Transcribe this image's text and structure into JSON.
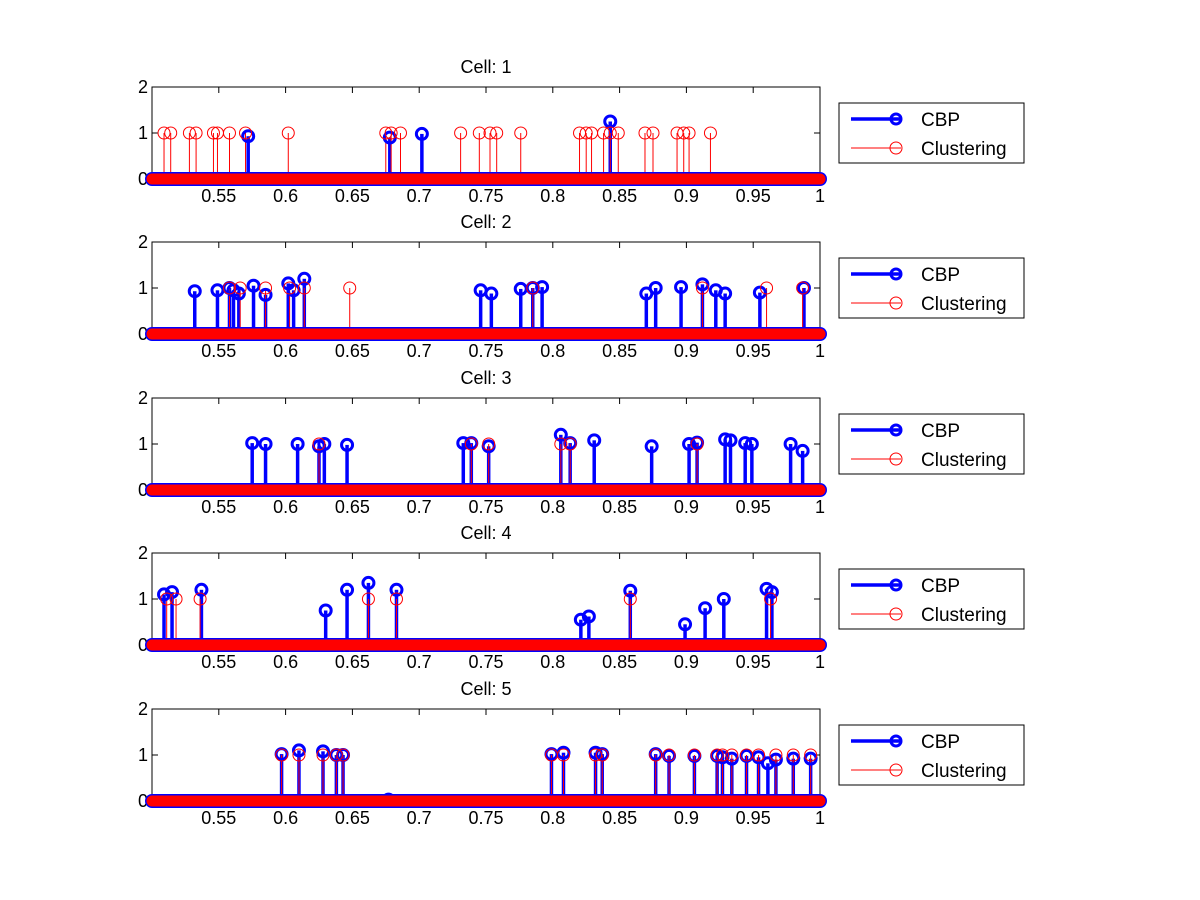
{
  "colors": {
    "cbp": "#0000ff",
    "clustering": "#ff0000",
    "axes": "#000000",
    "background": "#ffffff"
  },
  "chart_data": [
    {
      "type": "stem",
      "title": "Cell: 1",
      "xlim": [
        0.5,
        1.0
      ],
      "ylim": [
        0,
        2
      ],
      "xticks": [
        0.55,
        0.6,
        0.65,
        0.7,
        0.75,
        0.8,
        0.85,
        0.9,
        0.95,
        1
      ],
      "xtick_labels": [
        "0.55",
        "0.6",
        "0.65",
        "0.7",
        "0.75",
        "0.8",
        "0.85",
        "0.9",
        "0.95",
        "1"
      ],
      "yticks": [
        0,
        1,
        2
      ],
      "ytick_labels": [
        "0",
        "1",
        "2"
      ],
      "legend": {
        "position": "outside-right",
        "entries": [
          "CBP",
          "Clustering"
        ]
      },
      "series": [
        {
          "name": "CBP",
          "color": "#0000ff",
          "x": [
            0.572,
            0.678,
            0.702,
            0.843
          ],
          "y": [
            0.93,
            0.9,
            0.98,
            1.25
          ]
        },
        {
          "name": "Clustering",
          "color": "#ff0000",
          "x": [
            0.509,
            0.514,
            0.528,
            0.533,
            0.546,
            0.549,
            0.558,
            0.57,
            0.602,
            0.675,
            0.679,
            0.686,
            0.731,
            0.745,
            0.753,
            0.758,
            0.776,
            0.82,
            0.825,
            0.829,
            0.838,
            0.843,
            0.849,
            0.869,
            0.875,
            0.893,
            0.898,
            0.902,
            0.918
          ],
          "y": [
            1,
            1,
            1,
            1,
            1,
            1,
            1,
            1,
            1,
            1,
            1,
            1,
            1,
            1,
            1,
            1,
            1,
            1,
            1,
            1,
            1,
            1,
            1,
            1,
            1,
            1,
            1,
            1,
            1
          ]
        }
      ]
    },
    {
      "type": "stem",
      "title": "Cell: 2",
      "xlim": [
        0.5,
        1.0
      ],
      "ylim": [
        0,
        2
      ],
      "xticks": [
        0.55,
        0.6,
        0.65,
        0.7,
        0.75,
        0.8,
        0.85,
        0.9,
        0.95,
        1
      ],
      "xtick_labels": [
        "0.55",
        "0.6",
        "0.65",
        "0.7",
        "0.75",
        "0.8",
        "0.85",
        "0.9",
        "0.95",
        "1"
      ],
      "yticks": [
        0,
        1,
        2
      ],
      "ytick_labels": [
        "0",
        "1",
        "2"
      ],
      "legend": {
        "position": "outside-right",
        "entries": [
          "CBP",
          "Clustering"
        ]
      },
      "series": [
        {
          "name": "CBP",
          "color": "#0000ff",
          "x": [
            0.532,
            0.549,
            0.558,
            0.561,
            0.565,
            0.576,
            0.585,
            0.602,
            0.606,
            0.614,
            0.746,
            0.754,
            0.776,
            0.785,
            0.792,
            0.87,
            0.877,
            0.896,
            0.912,
            0.922,
            0.929,
            0.955,
            0.988
          ],
          "y": [
            0.93,
            0.95,
            1.0,
            0.95,
            0.88,
            1.05,
            0.85,
            1.1,
            0.95,
            1.2,
            0.95,
            0.88,
            0.98,
            1.0,
            1.02,
            0.88,
            1.0,
            1.02,
            1.08,
            0.95,
            0.88,
            0.9,
            1.0
          ]
        },
        {
          "name": "Clustering",
          "color": "#ff0000",
          "x": [
            0.558,
            0.566,
            0.585,
            0.603,
            0.614,
            0.648,
            0.785,
            0.912,
            0.96,
            0.987
          ],
          "y": [
            1,
            1,
            1,
            1,
            1,
            1,
            1,
            1,
            1,
            1
          ]
        }
      ]
    },
    {
      "type": "stem",
      "title": "Cell: 3",
      "xlim": [
        0.5,
        1.0
      ],
      "ylim": [
        0,
        2
      ],
      "xticks": [
        0.55,
        0.6,
        0.65,
        0.7,
        0.75,
        0.8,
        0.85,
        0.9,
        0.95,
        1
      ],
      "xtick_labels": [
        "0.55",
        "0.6",
        "0.65",
        "0.7",
        "0.75",
        "0.8",
        "0.85",
        "0.9",
        "0.95",
        "1"
      ],
      "yticks": [
        0,
        1,
        2
      ],
      "ytick_labels": [
        "0",
        "1",
        "2"
      ],
      "legend": {
        "position": "outside-right",
        "entries": [
          "CBP",
          "Clustering"
        ]
      },
      "series": [
        {
          "name": "CBP",
          "color": "#0000ff",
          "x": [
            0.575,
            0.585,
            0.609,
            0.625,
            0.629,
            0.646,
            0.733,
            0.739,
            0.752,
            0.806,
            0.813,
            0.831,
            0.874,
            0.902,
            0.908,
            0.929,
            0.933,
            0.944,
            0.949,
            0.978,
            0.987
          ],
          "y": [
            1.02,
            1.0,
            1.0,
            0.95,
            1.0,
            0.98,
            1.02,
            1.02,
            0.95,
            1.2,
            1.02,
            1.08,
            0.95,
            1.0,
            1.03,
            1.1,
            1.08,
            1.02,
            1.0,
            1.0,
            0.85
          ]
        },
        {
          "name": "Clustering",
          "color": "#ff0000",
          "x": [
            0.625,
            0.739,
            0.752,
            0.806,
            0.813,
            0.908
          ],
          "y": [
            1,
            1,
            1,
            1,
            1,
            1
          ]
        }
      ]
    },
    {
      "type": "stem",
      "title": "Cell: 4",
      "xlim": [
        0.5,
        1.0
      ],
      "ylim": [
        0,
        2
      ],
      "xticks": [
        0.55,
        0.6,
        0.65,
        0.7,
        0.75,
        0.8,
        0.85,
        0.9,
        0.95,
        1
      ],
      "xtick_labels": [
        "0.55",
        "0.6",
        "0.65",
        "0.7",
        "0.75",
        "0.8",
        "0.85",
        "0.9",
        "0.95",
        "1"
      ],
      "yticks": [
        0,
        1,
        2
      ],
      "ytick_labels": [
        "0",
        "1",
        "2"
      ],
      "legend": {
        "position": "outside-right",
        "entries": [
          "CBP",
          "Clustering"
        ]
      },
      "series": [
        {
          "name": "CBP",
          "color": "#0000ff",
          "x": [
            0.509,
            0.515,
            0.537,
            0.63,
            0.646,
            0.662,
            0.683,
            0.821,
            0.827,
            0.858,
            0.899,
            0.914,
            0.928,
            0.96,
            0.964
          ],
          "y": [
            1.1,
            1.15,
            1.2,
            0.75,
            1.2,
            1.35,
            1.2,
            0.55,
            0.62,
            1.18,
            0.45,
            0.8,
            1.0,
            1.22,
            1.15
          ]
        },
        {
          "name": "Clustering",
          "color": "#ff0000",
          "x": [
            0.511,
            0.518,
            0.536,
            0.662,
            0.683,
            0.858,
            0.963
          ],
          "y": [
            1,
            1,
            1,
            1,
            1,
            1,
            1
          ]
        }
      ]
    },
    {
      "type": "stem",
      "title": "Cell: 5",
      "xlim": [
        0.5,
        1.0
      ],
      "ylim": [
        0,
        2
      ],
      "xticks": [
        0.55,
        0.6,
        0.65,
        0.7,
        0.75,
        0.8,
        0.85,
        0.9,
        0.95,
        1
      ],
      "xtick_labels": [
        "0.55",
        "0.6",
        "0.65",
        "0.7",
        "0.75",
        "0.8",
        "0.85",
        "0.9",
        "0.95",
        "1"
      ],
      "yticks": [
        0,
        1,
        2
      ],
      "ytick_labels": [
        "0",
        "1",
        "2"
      ],
      "legend": {
        "position": "outside-right",
        "entries": [
          "CBP",
          "Clustering"
        ]
      },
      "series": [
        {
          "name": "CBP",
          "color": "#0000ff",
          "x": [
            0.597,
            0.61,
            0.628,
            0.638,
            0.643,
            0.677,
            0.799,
            0.808,
            0.832,
            0.837,
            0.877,
            0.887,
            0.906,
            0.923,
            0.927,
            0.934,
            0.945,
            0.954,
            0.961,
            0.967,
            0.98,
            0.993
          ],
          "y": [
            1.02,
            1.1,
            1.08,
            1.0,
            1.0,
            0.03,
            1.02,
            1.05,
            1.05,
            1.02,
            1.02,
            0.98,
            0.98,
            0.98,
            0.95,
            0.92,
            0.98,
            0.95,
            0.82,
            0.9,
            0.92,
            0.92
          ]
        },
        {
          "name": "Clustering",
          "color": "#ff0000",
          "x": [
            0.597,
            0.61,
            0.628,
            0.638,
            0.643,
            0.799,
            0.808,
            0.832,
            0.837,
            0.877,
            0.887,
            0.906,
            0.923,
            0.927,
            0.934,
            0.945,
            0.954,
            0.967,
            0.98,
            0.993
          ],
          "y": [
            1,
            1,
            1,
            1,
            1,
            1,
            1,
            1,
            1,
            1,
            1,
            1,
            1,
            1,
            1,
            1,
            1,
            1,
            1,
            1
          ]
        }
      ]
    }
  ]
}
